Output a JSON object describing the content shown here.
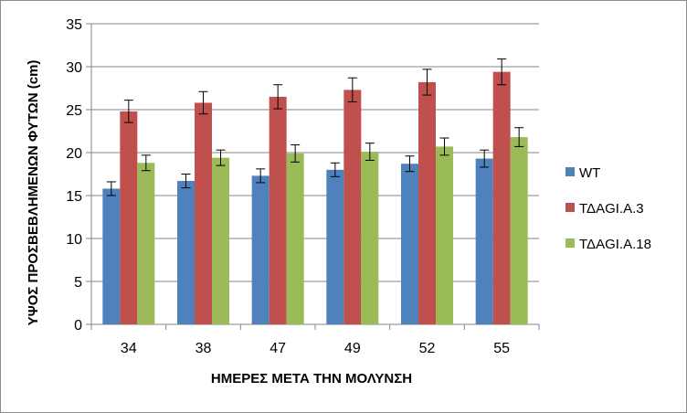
{
  "chart_data": {
    "type": "bar",
    "title": "",
    "xlabel": "ΗΜΕΡΕΣ ΜΕΤΑ ΤΗΝ ΜΟΛΥΝΣΗ",
    "ylabel": "ΥΨΟΣ ΠΡΟΣΒΕΒΛΗΜΕΝΩΝ ΦΥΤΩΝ (cm)",
    "categories": [
      "34",
      "38",
      "47",
      "49",
      "52",
      "55"
    ],
    "ylim": [
      0,
      35
    ],
    "yticks": [
      0,
      5,
      10,
      15,
      20,
      25,
      30,
      35
    ],
    "grid": true,
    "legend_position": "right",
    "series": [
      {
        "name": "WT",
        "color": "#4f81bd",
        "values": [
          15.8,
          16.7,
          17.3,
          18.0,
          18.7,
          19.3
        ],
        "errors": [
          0.8,
          0.8,
          0.8,
          0.8,
          0.9,
          1.0
        ]
      },
      {
        "name": "ΤΔAGI.A.3",
        "color": "#c0504d",
        "values": [
          24.8,
          25.8,
          26.5,
          27.3,
          28.2,
          29.4
        ],
        "errors": [
          1.3,
          1.3,
          1.4,
          1.4,
          1.5,
          1.5
        ]
      },
      {
        "name": "ΤΔAGI.A.18",
        "color": "#9bbb59",
        "values": [
          18.8,
          19.4,
          19.9,
          20.1,
          20.7,
          21.8
        ],
        "errors": [
          0.9,
          0.9,
          1.0,
          1.0,
          1.0,
          1.1
        ]
      }
    ]
  }
}
